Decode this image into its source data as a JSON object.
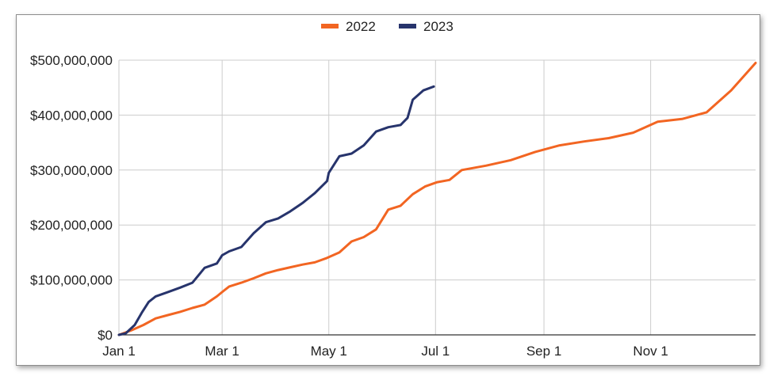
{
  "chart_data": {
    "type": "line",
    "title": "",
    "xlabel": "",
    "ylabel": "",
    "x_tick_labels": [
      "Jan 1",
      "Mar 1",
      "May 1",
      "Jul 1",
      "Sep 1",
      "Nov 1"
    ],
    "y_tick_labels": [
      "$0",
      "$100,000,000",
      "$200,000,000",
      "$300,000,000",
      "$400,000,000",
      "$500,000,000"
    ],
    "ylim": [
      0,
      500000000
    ],
    "grid": true,
    "legend_position": "top",
    "series": [
      {
        "name": "2022",
        "color": "#f26522",
        "x": [
          "Jan 1",
          "Jan 8",
          "Jan 15",
          "Jan 22",
          "Jan 29",
          "Feb 5",
          "Feb 12",
          "Feb 19",
          "Feb 26",
          "Mar 1",
          "Mar 5",
          "Mar 12",
          "Mar 19",
          "Mar 26",
          "Apr 2",
          "Apr 9",
          "Apr 16",
          "Apr 23",
          "Apr 30",
          "May 7",
          "May 14",
          "May 21",
          "May 28",
          "Jun 4",
          "Jun 11",
          "Jun 18",
          "Jun 25",
          "Jul 2",
          "Jul 9",
          "Jul 16",
          "Jul 30",
          "Aug 13",
          "Aug 27",
          "Sep 10",
          "Sep 24",
          "Oct 8",
          "Oct 22",
          "Nov 5",
          "Nov 19",
          "Dec 3",
          "Dec 17",
          "Dec 31"
        ],
        "y": [
          0,
          8000000,
          18000000,
          30000000,
          36000000,
          42000000,
          49000000,
          55000000,
          70000000,
          78000000,
          88000000,
          95000000,
          103000000,
          112000000,
          118000000,
          123000000,
          128000000,
          132000000,
          140000000,
          150000000,
          170000000,
          178000000,
          192000000,
          228000000,
          235000000,
          256000000,
          270000000,
          278000000,
          282000000,
          300000000,
          308000000,
          318000000,
          333000000,
          345000000,
          352000000,
          358000000,
          368000000,
          388000000,
          393000000,
          405000000,
          445000000,
          495000000
        ]
      },
      {
        "name": "2023",
        "color": "#27346c",
        "x": [
          "Jan 1",
          "Jan 5",
          "Jan 10",
          "Jan 14",
          "Jan 18",
          "Jan 22",
          "Jan 29",
          "Feb 5",
          "Feb 12",
          "Feb 19",
          "Feb 26",
          "Mar 1",
          "Mar 5",
          "Mar 12",
          "Mar 19",
          "Mar 26",
          "Apr 2",
          "Apr 9",
          "Apr 16",
          "Apr 23",
          "Apr 30",
          "May 1",
          "May 7",
          "May 14",
          "May 21",
          "May 28",
          "Jun 4",
          "Jun 11",
          "Jun 15",
          "Jun 18",
          "Jun 24",
          "Jun 30"
        ],
        "y": [
          0,
          3000000,
          18000000,
          40000000,
          60000000,
          70000000,
          78000000,
          86000000,
          95000000,
          122000000,
          130000000,
          145000000,
          152000000,
          160000000,
          185000000,
          205000000,
          212000000,
          225000000,
          240000000,
          258000000,
          280000000,
          295000000,
          325000000,
          330000000,
          345000000,
          370000000,
          378000000,
          382000000,
          395000000,
          428000000,
          445000000,
          452000000
        ]
      }
    ]
  }
}
